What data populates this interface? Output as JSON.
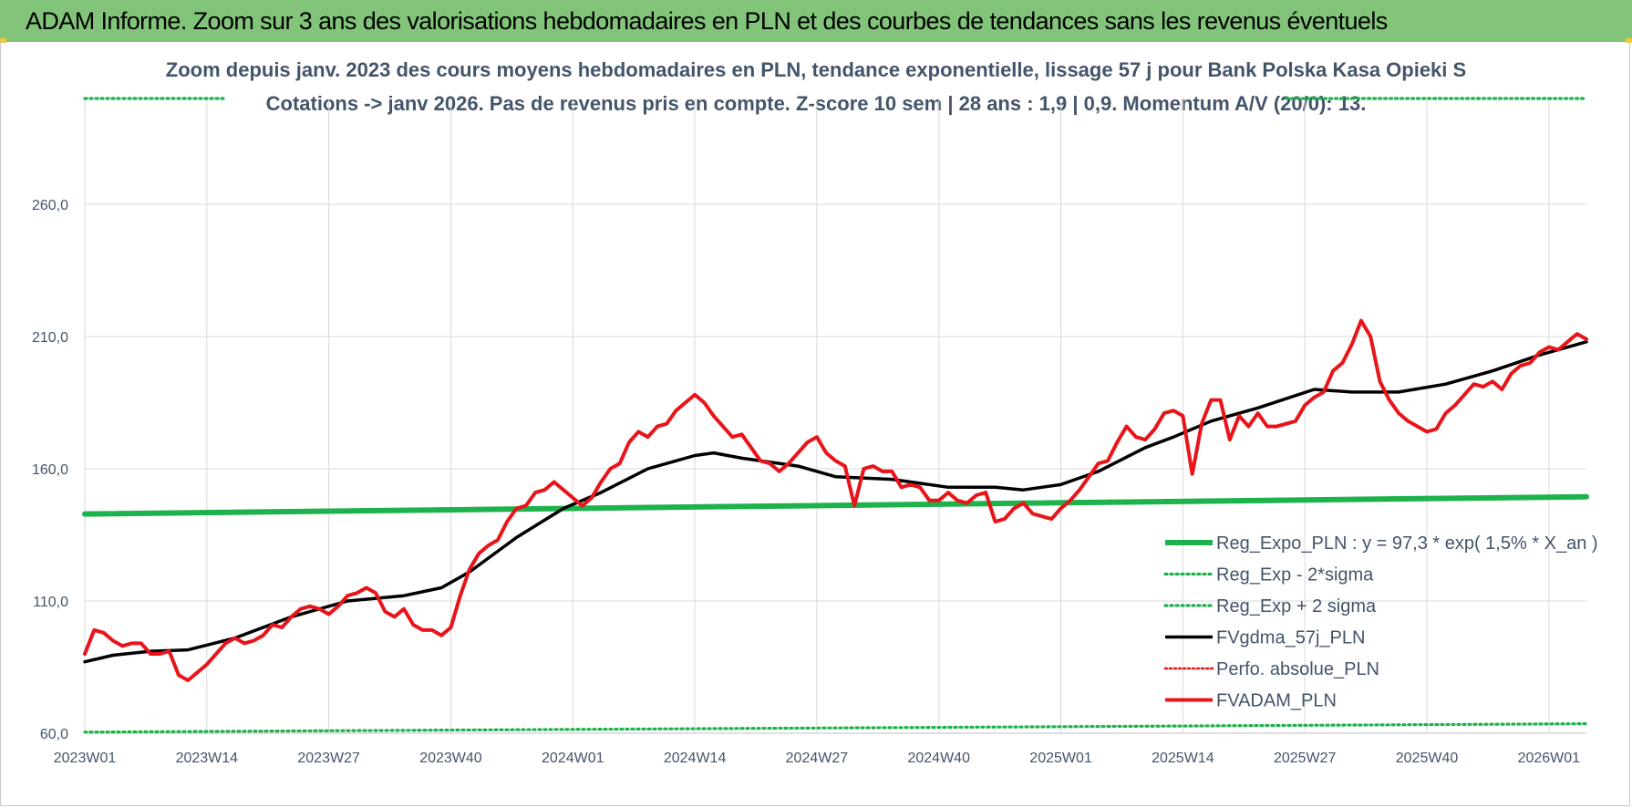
{
  "banner_title": "ADAM Informe. Zoom sur 3 ans des valorisations hebdomadaires en PLN et des courbes de tendances sans les revenus éventuels",
  "colors": {
    "banner_bg": "#82c47a",
    "reg_expo": "#1db24b",
    "sigma": "#1db24b",
    "fvgdma": "#000000",
    "perfo": "#e0191a",
    "fvadam": "#e8141a",
    "grid": "#d9d9d9",
    "text": "#44546a"
  },
  "chart_data": {
    "type": "line",
    "subtitle_line1": "Zoom depuis janv. 2023 des cours moyens hebdomadaires en PLN, tendance exponentielle, lissage 57 j pour Bank Polska Kasa Opieki S",
    "subtitle_line2": "Cotations -> janv 2026. Pas de revenus pris en compte. Z-score 10 sem | 28 ans : 1,9 | 0,9. Momentum A/V (20/0): 13.",
    "y_ticks": [
      "60,0",
      "110,0",
      "160,0",
      "210,0",
      "260,0"
    ],
    "ylim": [
      60,
      300
    ],
    "x_ticks": [
      "2023W01",
      "2023W14",
      "2023W27",
      "2023W40",
      "2024W01",
      "2024W14",
      "2024W27",
      "2024W40",
      "2025W01",
      "2025W14",
      "2025W27",
      "2025W40",
      "2026W01"
    ],
    "x_tick_index": [
      0,
      13,
      26,
      39,
      52,
      65,
      78,
      91,
      104,
      117,
      130,
      143,
      156
    ],
    "n_weeks": 161,
    "grid": true,
    "legend_position": "bottom-right",
    "series": [
      {
        "name": "Reg_Expo_PLN : y = 97,3 * exp( 1,5% *  X_an )",
        "style": "solid-thick",
        "x": [
          0,
          160
        ],
        "values": [
          142.9,
          149.4
        ]
      },
      {
        "name": "Reg_Exp - 2*sigma",
        "style": "dotted",
        "x": [
          0,
          160
        ],
        "values": [
          60.4,
          63.6
        ]
      },
      {
        "name": "Reg_Exp + 2 sigma",
        "style": "dotted",
        "x": [
          0,
          160
        ],
        "values": [
          300.0,
          300.0
        ]
      },
      {
        "name": "FVgdma_57j_PLN",
        "style": "solid",
        "x": [
          0,
          3,
          7,
          11,
          16,
          22,
          28,
          34,
          38,
          41,
          46,
          51,
          55,
          60,
          65,
          67,
          70,
          76,
          80,
          86,
          92,
          97,
          100,
          104,
          108,
          113,
          116,
          120,
          125,
          131,
          135,
          140,
          145,
          150,
          155,
          160
        ],
        "values": [
          87,
          89.5,
          91,
          91.5,
          96,
          104,
          110,
          112,
          115,
          121,
          134,
          145,
          151,
          160,
          165,
          166,
          164,
          161,
          157,
          156,
          153,
          153,
          152,
          154,
          159,
          168,
          172,
          178,
          183,
          190,
          189,
          189,
          192,
          197,
          203,
          208
        ]
      },
      {
        "name": "Perfo. absolue_PLN",
        "style": "dotted",
        "x": [],
        "values": []
      },
      {
        "name": "FVADAM_PLN",
        "style": "solid-thick",
        "x": [
          0,
          1,
          2,
          3,
          4,
          5,
          6,
          7,
          8,
          9,
          10,
          11,
          12,
          13,
          14,
          15,
          16,
          17,
          18,
          19,
          20,
          21,
          22,
          23,
          24,
          25,
          26,
          27,
          28,
          29,
          30,
          31,
          32,
          33,
          34,
          35,
          36,
          37,
          38,
          39,
          40,
          41,
          42,
          43,
          44,
          45,
          46,
          47,
          48,
          49,
          50,
          51,
          52,
          53,
          54,
          55,
          56,
          57,
          58,
          59,
          60,
          61,
          62,
          63,
          64,
          65,
          66,
          67,
          68,
          69,
          70,
          71,
          72,
          73,
          74,
          75,
          76,
          77,
          78,
          79,
          80,
          81,
          82,
          83,
          84,
          85,
          86,
          87,
          88,
          89,
          90,
          91,
          92,
          93,
          94,
          95,
          96,
          97,
          98,
          99,
          100,
          101,
          102,
          103,
          104,
          105,
          106,
          107,
          108,
          109,
          110,
          111,
          112,
          113,
          114,
          115,
          116,
          117,
          118,
          119,
          120,
          121,
          122,
          123,
          124,
          125,
          126,
          127,
          128,
          129,
          130,
          131,
          132,
          133,
          134,
          135,
          136,
          137,
          138,
          139,
          140,
          141,
          142,
          143,
          144,
          145,
          146,
          147,
          148,
          149,
          150,
          151,
          152,
          153,
          154,
          155,
          156,
          157,
          158,
          159,
          160
        ],
        "values": [
          90,
          99,
          98,
          95,
          93,
          94,
          94,
          90,
          90,
          91,
          82,
          80,
          83,
          86,
          90,
          94,
          96,
          94,
          95,
          97,
          101,
          100,
          104,
          107,
          108,
          107,
          105,
          108,
          112,
          113,
          115,
          113,
          106,
          104,
          107,
          101,
          99,
          99,
          97,
          100,
          112,
          122,
          128,
          131,
          133,
          140,
          145,
          146,
          151,
          152,
          155,
          152,
          149,
          146,
          149,
          155,
          160,
          162,
          170,
          174,
          172,
          176,
          177,
          182,
          185,
          188,
          185,
          180,
          176,
          172,
          173,
          168,
          163,
          162,
          159,
          162,
          166,
          170,
          172,
          166,
          163,
          161,
          146,
          160,
          161,
          159,
          159,
          153,
          154,
          153,
          148,
          148,
          151,
          148,
          147,
          150,
          151,
          140,
          141,
          145,
          147,
          143,
          142,
          141,
          145,
          148,
          152,
          157,
          162,
          163,
          170,
          176,
          172,
          171,
          175,
          181,
          182,
          180,
          158,
          177,
          186,
          186,
          171,
          180,
          176,
          181,
          176,
          176,
          177,
          178,
          184,
          187,
          189,
          197,
          200,
          207,
          216,
          210,
          193,
          186,
          181,
          178,
          176,
          174,
          175,
          181,
          184,
          188,
          192,
          191,
          193,
          190,
          196,
          199,
          200,
          204,
          206,
          205,
          208,
          211,
          209
        ]
      }
    ]
  }
}
